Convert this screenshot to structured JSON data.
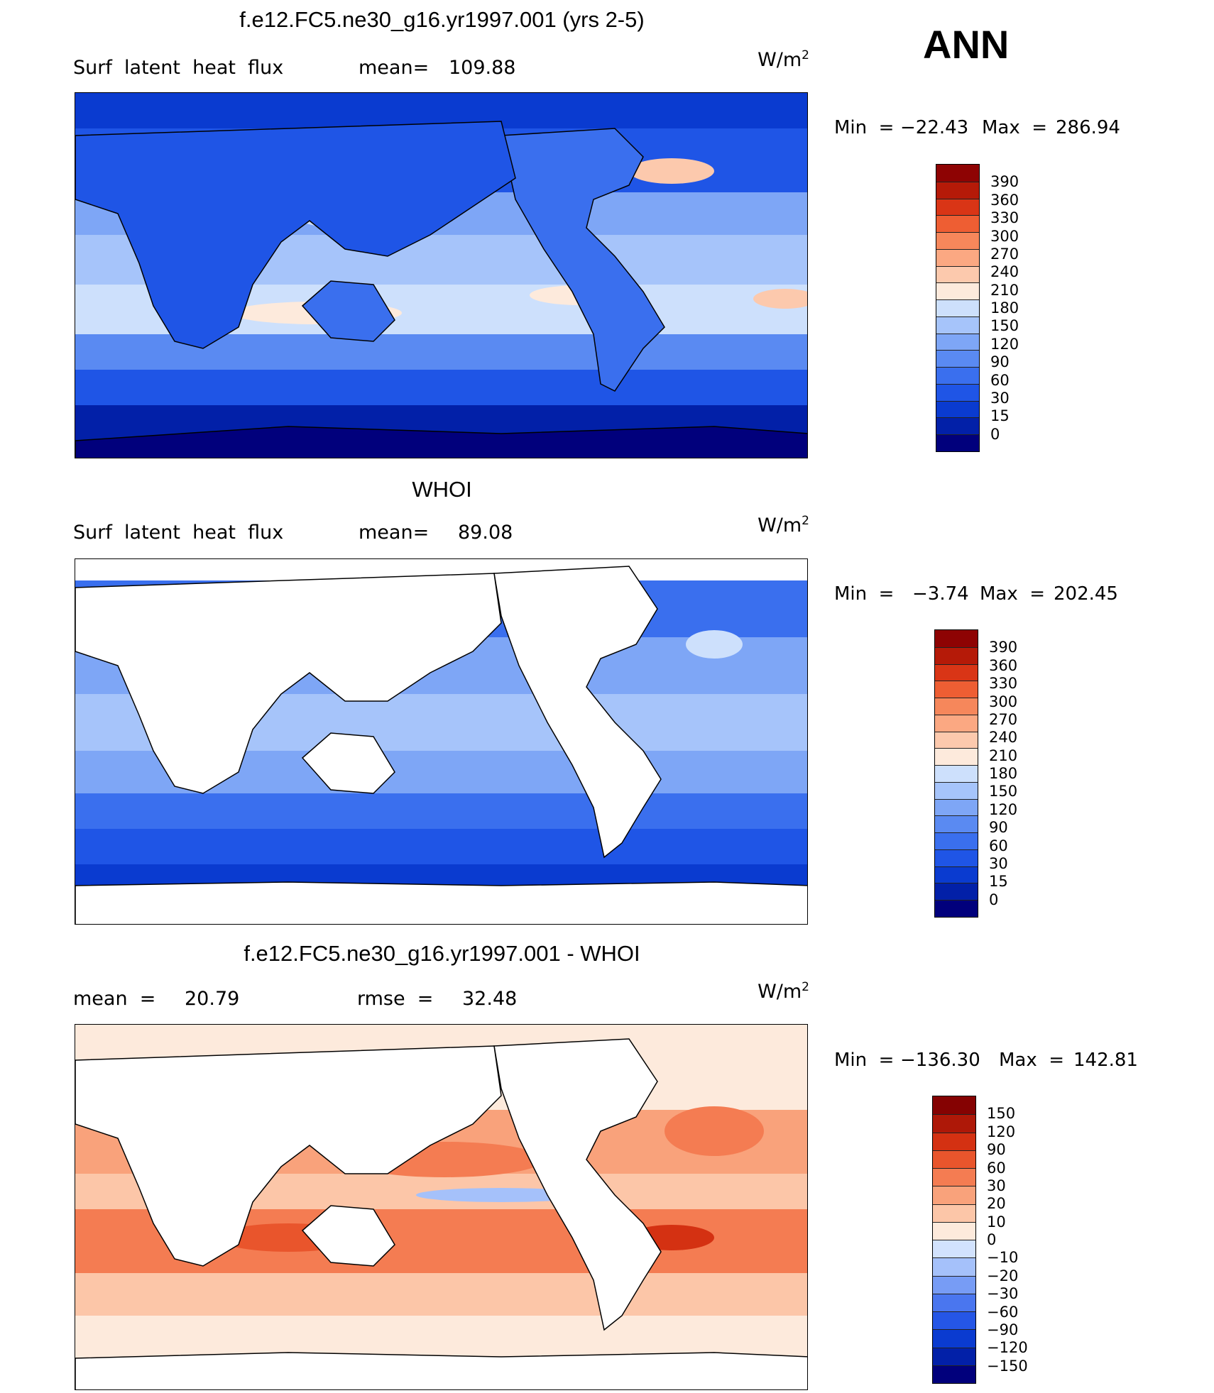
{
  "season": "ANN",
  "units_text": "W/m",
  "units_sup": "2",
  "palettes": {
    "abs": [
      "#01007c",
      "#0220a8",
      "#0a3bd0",
      "#1f55e6",
      "#3a6fee",
      "#5a8af2",
      "#7ea6f6",
      "#a6c4fa",
      "#cde0fc",
      "#fdeadc",
      "#fcc9ad",
      "#fba882",
      "#f6875b",
      "#ee5e33",
      "#d93516",
      "#b51a08",
      "#8e0303"
    ],
    "diff": [
      "#01007c",
      "#0220a8",
      "#0a3bd0",
      "#2556e6",
      "#4a76ef",
      "#779cf5",
      "#a5c1fa",
      "#d2e2fd",
      "#fdeadc",
      "#fcc6a8",
      "#f9a27b",
      "#f47c52",
      "#e9552c",
      "#d43112",
      "#ae1808",
      "#850202"
    ]
  },
  "chart_data": [
    {
      "type": "map",
      "title": "f.e12.FC5.ne30_g16.yr1997.001 (yrs 2-5)",
      "variable": "Surf  latent  heat  flux",
      "stat_label": "mean=",
      "stat_value": "109.88",
      "min_label": "Min  =",
      "min_value": "−22.43",
      "max_label": "Max  =",
      "max_value": "286.94",
      "colorbar_levels": [
        "390",
        "360",
        "330",
        "300",
        "270",
        "240",
        "210",
        "180",
        "150",
        "120",
        "90",
        "60",
        "30",
        "15",
        "0"
      ]
    },
    {
      "type": "map",
      "title": "WHOI",
      "variable": "Surf  latent  heat  flux",
      "stat_label": "mean=",
      "stat_value": "89.08",
      "min_label": "Min  =",
      "min_value": "−3.74",
      "max_label": "Max  =",
      "max_value": "202.45",
      "colorbar_levels": [
        "390",
        "360",
        "330",
        "300",
        "270",
        "240",
        "210",
        "180",
        "150",
        "120",
        "90",
        "60",
        "30",
        "15",
        "0"
      ]
    },
    {
      "type": "map",
      "title": "f.e12.FC5.ne30_g16.yr1997.001 - WHOI",
      "stat_label": "mean  =",
      "stat_value": "20.79",
      "stat2_label": "rmse  =",
      "stat2_value": "32.48",
      "min_label": "Min  =",
      "min_value": "−136.30",
      "max_label": "Max  =",
      "max_value": "142.81",
      "colorbar_levels": [
        "150",
        "120",
        "90",
        "60",
        "30",
        "20",
        "10",
        "0",
        "−10",
        "−20",
        "−30",
        "−60",
        "−90",
        "−120",
        "−150"
      ]
    }
  ]
}
